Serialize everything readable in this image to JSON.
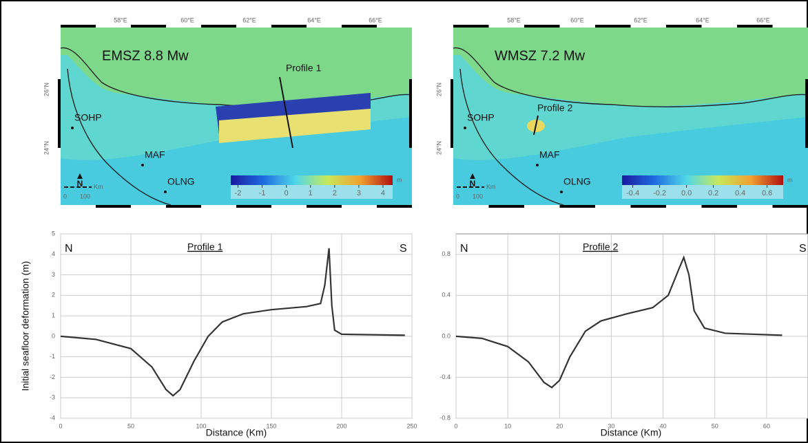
{
  "maps": [
    {
      "title": "EMSZ 8.8 Mw",
      "profile": "Profile 1",
      "sites": [
        "SOHP",
        "MAF",
        "OLNG"
      ],
      "lon_labels": [
        "58°E",
        "60°E",
        "62°E",
        "64°E",
        "66°E"
      ],
      "lat_labels": [
        "26°N",
        "24°N"
      ],
      "north": "N",
      "scale_unit": "Km",
      "scale_labels": [
        "0",
        "100"
      ],
      "clim": [
        -2.3,
        4.4
      ],
      "cticks": [
        -2,
        -1,
        0,
        1,
        2,
        3,
        4
      ],
      "cunit": "m"
    },
    {
      "title": "WMSZ 7.2 Mw",
      "profile": "Profile 2",
      "sites": [
        "SOHP",
        "MAF",
        "OLNG"
      ],
      "lon_labels": [
        "58°E",
        "60°E",
        "62°E",
        "64°E",
        "66°E"
      ],
      "lat_labels": [
        "26°N",
        "24°N"
      ],
      "north": "N",
      "scale_unit": "Km",
      "scale_labels": [
        "0",
        "100"
      ],
      "clim": [
        -0.48,
        0.72
      ],
      "cticks": [
        -0.4,
        -0.2,
        {
          "value": 0,
          "label": "0.0"
        },
        0.2,
        0.4,
        0.6
      ],
      "cunit": "m"
    }
  ],
  "chart_data": [
    {
      "type": "line",
      "ylabel": "Initial seafloor deformation (m)",
      "xlabel": "Distance (Km)",
      "annotations": [
        "N",
        "S",
        "Profile 1"
      ],
      "x": [
        0,
        25,
        50,
        65,
        75,
        80,
        85,
        95,
        105,
        115,
        130,
        150,
        175,
        185,
        188,
        191,
        193,
        195,
        200,
        245
      ],
      "values": [
        0,
        -0.15,
        -0.6,
        -1.5,
        -2.6,
        -2.9,
        -2.6,
        -1.2,
        0,
        0.7,
        1.1,
        1.3,
        1.45,
        1.6,
        2.5,
        4.3,
        1.5,
        0.3,
        0.1,
        0.05
      ],
      "color": "#333333",
      "xlim": [
        0,
        250
      ],
      "xticks": [
        0,
        50,
        100,
        150,
        200,
        250
      ],
      "ylim": [
        -4,
        5
      ],
      "yticks": [
        -4,
        -3,
        -2,
        -1,
        0,
        1,
        2,
        3,
        4,
        5
      ],
      "grid": true
    },
    {
      "type": "line",
      "xlabel": "Distance (Km)",
      "annotations": [
        "N",
        "S",
        "Profile 2"
      ],
      "x": [
        0,
        5,
        10,
        14,
        17,
        18.5,
        20,
        22,
        25,
        28,
        33,
        38,
        41,
        43,
        44,
        45,
        46,
        48,
        52,
        63
      ],
      "values": [
        0,
        -0.02,
        -0.1,
        -0.25,
        -0.45,
        -0.5,
        -0.43,
        -0.2,
        0.05,
        0.15,
        0.22,
        0.28,
        0.4,
        0.65,
        0.77,
        0.6,
        0.25,
        0.08,
        0.03,
        0.01
      ],
      "color": "#333333",
      "xlim": [
        0,
        68
      ],
      "xticks": [
        0,
        10,
        20,
        30,
        40,
        50,
        60
      ],
      "ylim": [
        -0.8,
        1.0
      ],
      "yticks": [
        -0.8,
        -0.4,
        {
          "value": 0,
          "label": "0.0"
        },
        0.4,
        0.8
      ],
      "grid": true
    }
  ]
}
